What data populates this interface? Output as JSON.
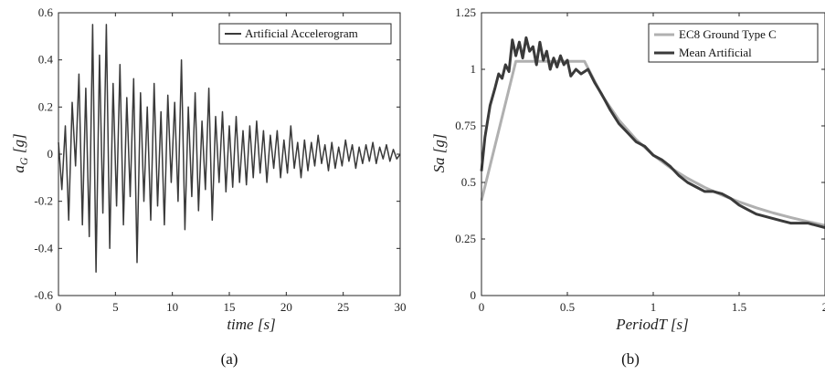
{
  "chart_data": [
    {
      "type": "line",
      "panel_label": "(a)",
      "xlabel": "time [s]",
      "ylabel": "a_G [g]",
      "ylabel_parts": {
        "main": "a",
        "sub": "G",
        "unit": " [g]"
      },
      "xlim": [
        0,
        30
      ],
      "ylim": [
        -0.6,
        0.6
      ],
      "xticks": [
        "0",
        "5",
        "10",
        "15",
        "20",
        "25",
        "30"
      ],
      "yticks": [
        "0.6",
        "0.4",
        "0.2",
        "0",
        "-0.2",
        "-0.4",
        "-0.6"
      ],
      "legend": {
        "position": "top-right",
        "entries": [
          "Artificial Accelerogram"
        ]
      },
      "series": [
        {
          "name": "Artificial Accelerogram",
          "color": "#3a3a3a",
          "x": [
            0.0,
            0.3,
            0.6,
            0.9,
            1.2,
            1.5,
            1.8,
            2.1,
            2.4,
            2.7,
            3.0,
            3.3,
            3.6,
            3.9,
            4.2,
            4.5,
            4.8,
            5.1,
            5.4,
            5.7,
            6.0,
            6.3,
            6.6,
            6.9,
            7.2,
            7.5,
            7.8,
            8.1,
            8.4,
            8.7,
            9.0,
            9.3,
            9.6,
            9.9,
            10.2,
            10.5,
            10.8,
            11.1,
            11.4,
            11.7,
            12.0,
            12.3,
            12.6,
            12.9,
            13.2,
            13.5,
            13.8,
            14.1,
            14.4,
            14.7,
            15.0,
            15.3,
            15.6,
            15.9,
            16.2,
            16.5,
            16.8,
            17.1,
            17.4,
            17.7,
            18.0,
            18.3,
            18.6,
            18.9,
            19.2,
            19.5,
            19.8,
            20.1,
            20.4,
            20.7,
            21.0,
            21.3,
            21.6,
            21.9,
            22.2,
            22.5,
            22.8,
            23.1,
            23.4,
            23.7,
            24.0,
            24.3,
            24.6,
            24.9,
            25.2,
            25.5,
            25.8,
            26.1,
            26.4,
            26.7,
            27.0,
            27.3,
            27.6,
            27.9,
            28.2,
            28.5,
            28.8,
            29.1,
            29.4,
            29.7,
            30.0
          ],
          "y": [
            0.05,
            -0.15,
            0.12,
            -0.28,
            0.22,
            -0.05,
            0.34,
            -0.3,
            0.28,
            -0.35,
            0.55,
            -0.5,
            0.42,
            -0.25,
            0.55,
            -0.4,
            0.3,
            -0.22,
            0.38,
            -0.3,
            0.24,
            -0.18,
            0.32,
            -0.46,
            0.26,
            -0.2,
            0.2,
            -0.28,
            0.3,
            -0.22,
            0.18,
            -0.3,
            0.25,
            -0.12,
            0.22,
            -0.2,
            0.4,
            -0.32,
            0.2,
            -0.18,
            0.26,
            -0.24,
            0.14,
            -0.15,
            0.28,
            -0.28,
            0.16,
            -0.12,
            0.18,
            -0.16,
            0.12,
            -0.14,
            0.16,
            -0.12,
            0.1,
            -0.13,
            0.12,
            -0.1,
            0.14,
            -0.08,
            0.1,
            -0.12,
            0.08,
            -0.06,
            0.1,
            -0.1,
            0.06,
            -0.08,
            0.12,
            -0.06,
            0.05,
            -0.1,
            0.06,
            -0.07,
            0.05,
            -0.05,
            0.08,
            -0.04,
            0.04,
            -0.07,
            0.05,
            -0.06,
            0.03,
            -0.05,
            0.06,
            -0.03,
            0.04,
            -0.06,
            0.03,
            -0.04,
            0.04,
            -0.03,
            0.05,
            -0.04,
            0.03,
            -0.02,
            0.04,
            -0.03,
            0.02,
            -0.02,
            0.0
          ]
        }
      ]
    },
    {
      "type": "line",
      "panel_label": "(b)",
      "xlabel": "PeriodT [s]",
      "ylabel": "Sa [g]",
      "xlim": [
        0,
        2
      ],
      "ylim": [
        0,
        1.25
      ],
      "xticks": [
        "0",
        "0.5",
        "1",
        "1.5",
        "2"
      ],
      "yticks": [
        "1.25",
        "1",
        "0.75",
        "0.5",
        "0.25",
        "0"
      ],
      "legend": {
        "position": "top-right",
        "entries": [
          "EC8 Ground Type C",
          "Mean Artificial"
        ]
      },
      "series": [
        {
          "name": "EC8 Ground Type C",
          "color": "#b0b0b0",
          "x": [
            0.0,
            0.2,
            0.6,
            0.7,
            0.8,
            0.9,
            1.0,
            1.1,
            1.2,
            1.3,
            1.4,
            1.5,
            1.6,
            1.7,
            1.8,
            1.9,
            2.0
          ],
          "y": [
            0.42,
            1.035,
            1.035,
            0.887,
            0.776,
            0.69,
            0.621,
            0.565,
            0.518,
            0.478,
            0.444,
            0.414,
            0.388,
            0.365,
            0.345,
            0.327,
            0.31
          ]
        },
        {
          "name": "Mean Artificial",
          "color": "#3a3a3a",
          "x": [
            0.0,
            0.02,
            0.05,
            0.08,
            0.1,
            0.12,
            0.14,
            0.16,
            0.18,
            0.2,
            0.22,
            0.24,
            0.26,
            0.28,
            0.3,
            0.32,
            0.34,
            0.36,
            0.38,
            0.4,
            0.42,
            0.44,
            0.46,
            0.48,
            0.5,
            0.52,
            0.55,
            0.58,
            0.62,
            0.66,
            0.7,
            0.75,
            0.8,
            0.85,
            0.9,
            0.95,
            1.0,
            1.05,
            1.1,
            1.15,
            1.2,
            1.25,
            1.3,
            1.35,
            1.4,
            1.45,
            1.5,
            1.55,
            1.6,
            1.65,
            1.7,
            1.75,
            1.8,
            1.85,
            1.9,
            1.95,
            2.0
          ],
          "y": [
            0.55,
            0.7,
            0.84,
            0.92,
            0.98,
            0.96,
            1.02,
            0.99,
            1.13,
            1.06,
            1.12,
            1.05,
            1.14,
            1.08,
            1.1,
            1.02,
            1.12,
            1.04,
            1.08,
            1.0,
            1.05,
            1.01,
            1.06,
            1.02,
            1.04,
            0.97,
            1.0,
            0.98,
            1.0,
            0.94,
            0.89,
            0.82,
            0.76,
            0.72,
            0.68,
            0.66,
            0.62,
            0.6,
            0.57,
            0.53,
            0.5,
            0.48,
            0.46,
            0.46,
            0.45,
            0.43,
            0.4,
            0.38,
            0.36,
            0.35,
            0.34,
            0.33,
            0.32,
            0.32,
            0.32,
            0.31,
            0.3
          ]
        }
      ]
    }
  ]
}
